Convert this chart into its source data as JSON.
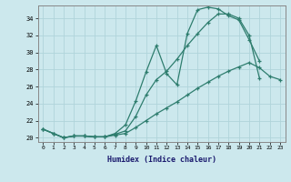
{
  "xlabel": "Humidex (Indice chaleur)",
  "ylabel": "",
  "background_color": "#cce8ed",
  "grid_color": "#b0d4da",
  "line_color": "#2e7d6e",
  "x_values": [
    0,
    1,
    2,
    3,
    4,
    5,
    6,
    7,
    8,
    9,
    10,
    11,
    12,
    13,
    14,
    15,
    16,
    17,
    18,
    19,
    20,
    21,
    22,
    23
  ],
  "line1": [
    21.0,
    20.5,
    20.0,
    20.2,
    20.2,
    20.1,
    20.1,
    20.5,
    21.5,
    24.3,
    27.7,
    30.8,
    27.5,
    26.2,
    32.2,
    35.0,
    35.3,
    35.1,
    34.3,
    33.8,
    31.5,
    29.0,
    null,
    null
  ],
  "line2": [
    21.0,
    20.5,
    20.0,
    20.2,
    20.2,
    20.1,
    20.1,
    20.4,
    20.8,
    22.5,
    25.0,
    26.8,
    27.8,
    29.2,
    30.8,
    32.2,
    33.5,
    34.5,
    34.5,
    34.0,
    32.0,
    27.0,
    null,
    null
  ],
  "line3": [
    21.0,
    20.5,
    20.0,
    20.2,
    20.2,
    20.1,
    20.1,
    20.3,
    20.5,
    21.2,
    22.0,
    22.8,
    23.5,
    24.2,
    25.0,
    25.8,
    26.5,
    27.2,
    27.8,
    28.3,
    28.8,
    28.2,
    27.2,
    26.8
  ],
  "ylim": [
    19.5,
    35.5
  ],
  "xlim": [
    -0.5,
    23.5
  ],
  "yticks": [
    20,
    22,
    24,
    26,
    28,
    30,
    32,
    34
  ],
  "xticks": [
    0,
    1,
    2,
    3,
    4,
    5,
    6,
    7,
    8,
    9,
    10,
    11,
    12,
    13,
    14,
    15,
    16,
    17,
    18,
    19,
    20,
    21,
    22,
    23
  ]
}
